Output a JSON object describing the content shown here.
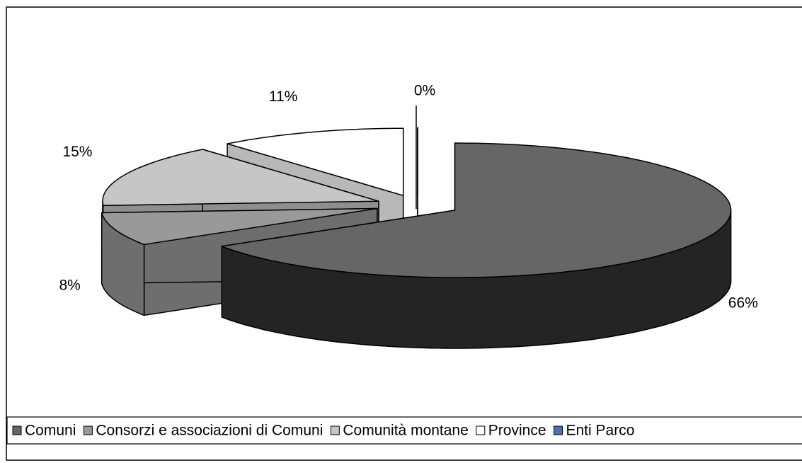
{
  "chart_data": {
    "type": "pie",
    "categories": [
      "Comuni",
      "Consorzi e associazioni di Comuni",
      "Comunità montane",
      "Province",
      "Enti Parco"
    ],
    "values": [
      66,
      8,
      15,
      11,
      0
    ],
    "value_labels": [
      "66%",
      "8%",
      "15%",
      "11%",
      "0%"
    ],
    "colors": [
      "#666666",
      "#999999",
      "#c6c6c6",
      "#ffffff",
      "#4f6fa8"
    ]
  }
}
